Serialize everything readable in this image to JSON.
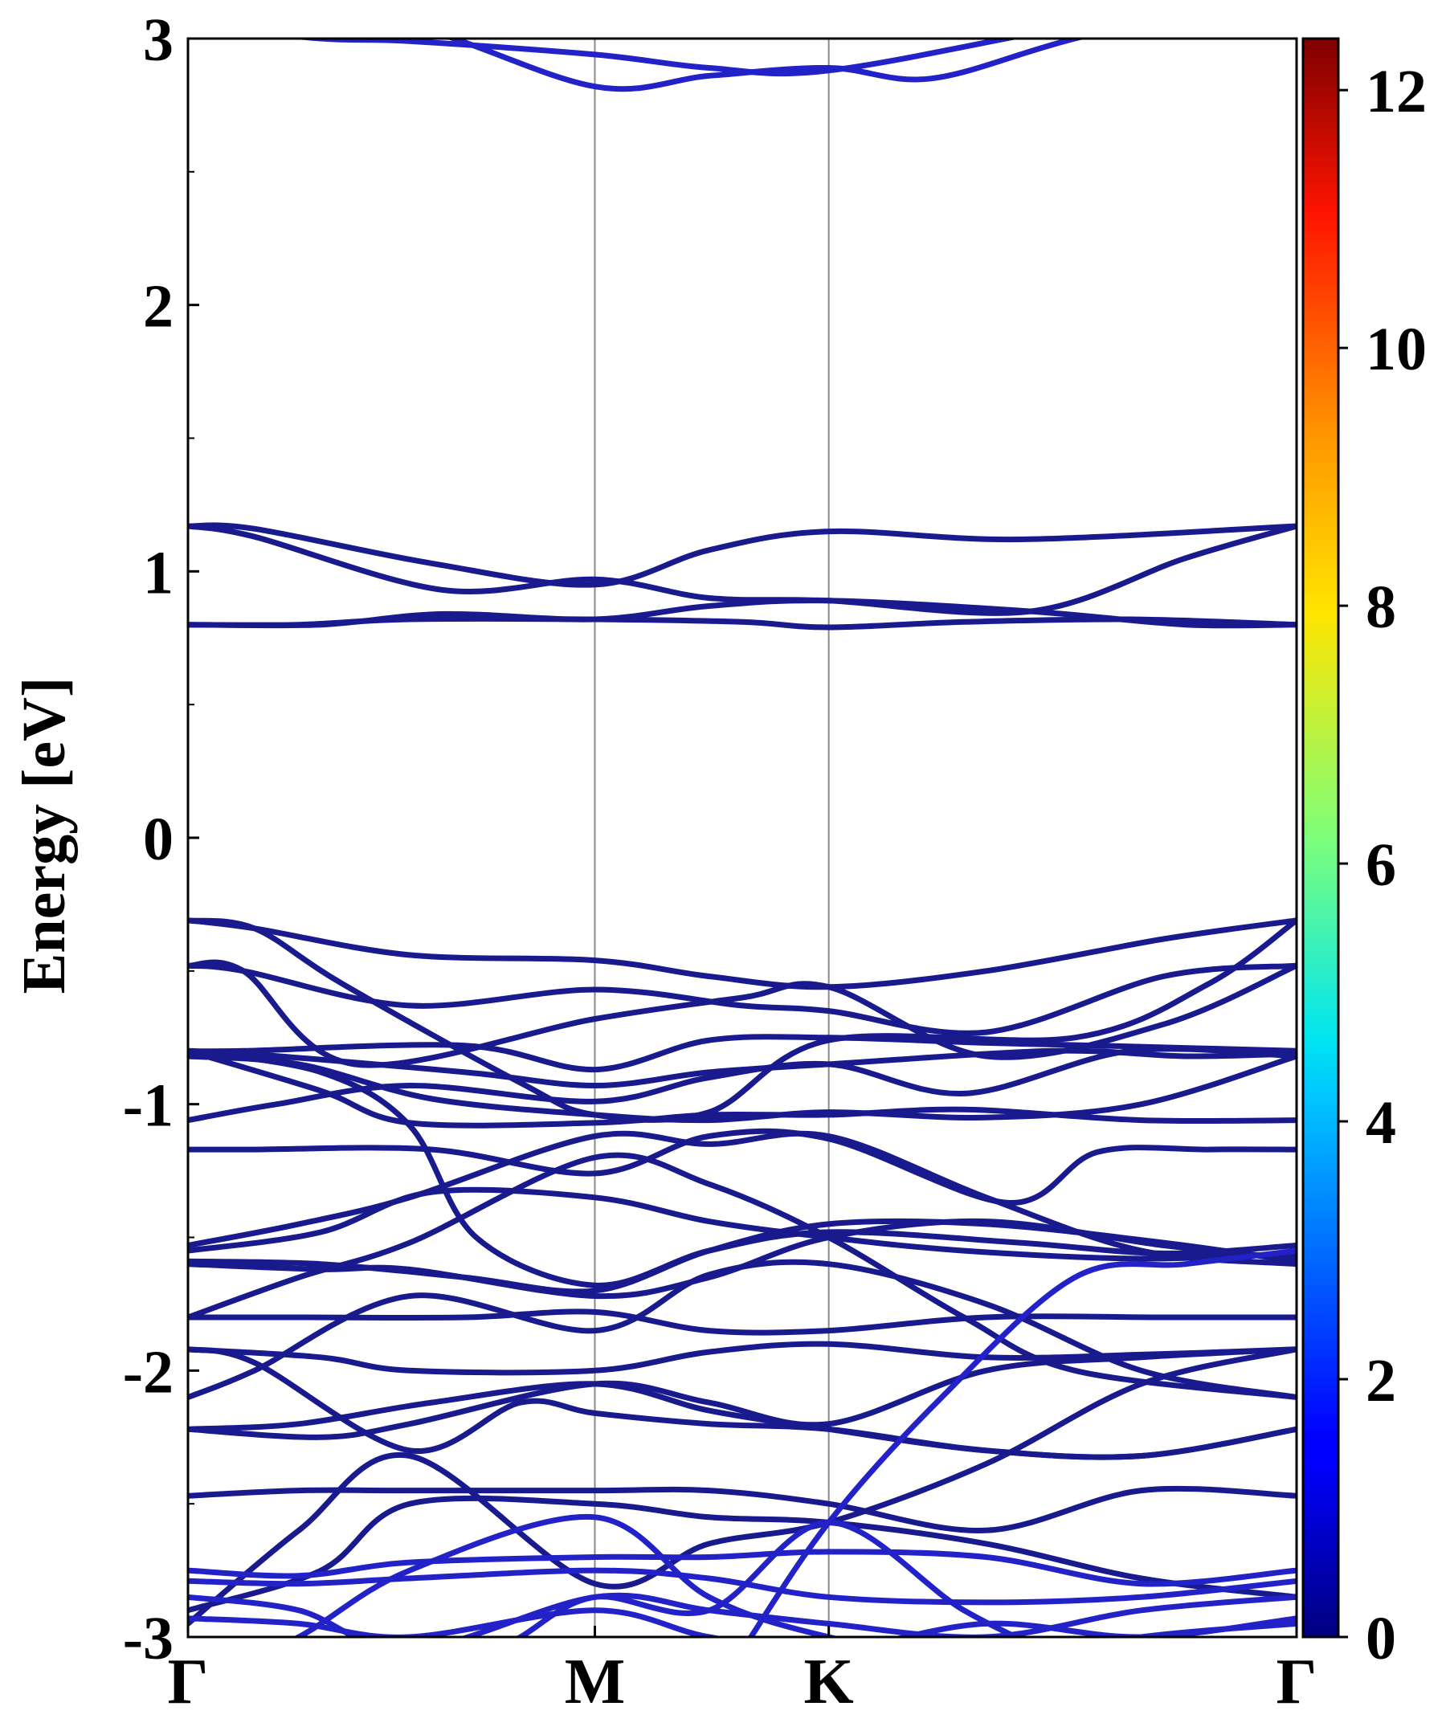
{
  "chart_data": {
    "type": "line",
    "title": "",
    "ylabel": "Energy [eV]",
    "xlabel": "",
    "ylim": [
      -3,
      3
    ],
    "yticks": [
      "3",
      "2",
      "1",
      "0",
      "-1",
      "-2",
      "-3"
    ],
    "yticks_values": [
      3,
      2,
      1,
      0,
      -1,
      -2,
      -3
    ],
    "high_symmetry_points": [
      {
        "label": "Γ",
        "k": 0
      },
      {
        "label": "M",
        "k": 0.367
      },
      {
        "label": "K",
        "k": 0.578
      },
      {
        "label": "Γ",
        "k": 1.0
      }
    ],
    "grid": false,
    "colorbar": {
      "range": [
        0,
        12.4
      ],
      "ticks": [
        "0",
        "2",
        "4",
        "6",
        "8",
        "10",
        "12"
      ],
      "ticks_values": [
        0,
        2,
        4,
        6,
        8,
        10,
        12
      ],
      "colormap": "jet"
    },
    "band_color": "#1a1a8f",
    "band_color_light": "#2222c8",
    "series": [
      {
        "k": [
          0,
          0.12,
          0.2,
          0.367,
          0.47,
          0.578,
          0.8,
          1.0
        ],
        "energy": [
          3.05,
          3.0,
          2.99,
          2.94,
          2.89,
          2.88,
          3.05,
          3.2
        ]
      },
      {
        "k": [
          0,
          0.2,
          0.367,
          0.47,
          0.578,
          0.67,
          0.8,
          1.0
        ],
        "energy": [
          3.2,
          3.05,
          2.82,
          2.86,
          2.89,
          2.85,
          3.0,
          3.2
        ]
      },
      {
        "k": [
          0,
          0.06,
          0.22,
          0.367,
          0.47,
          0.578,
          0.75,
          1.0
        ],
        "energy": [
          1.17,
          1.16,
          1.03,
          0.95,
          1.08,
          1.15,
          1.12,
          1.17
        ]
      },
      {
        "k": [
          0,
          0.06,
          0.23,
          0.367,
          0.47,
          0.578,
          0.76,
          0.9,
          1.0
        ],
        "energy": [
          1.17,
          1.13,
          0.93,
          0.97,
          0.9,
          0.89,
          0.85,
          1.05,
          1.17
        ]
      },
      {
        "k": [
          0,
          0.1,
          0.2,
          0.367,
          0.5,
          0.578,
          0.7,
          0.85,
          1.0
        ],
        "energy": [
          0.8,
          0.8,
          0.82,
          0.82,
          0.81,
          0.79,
          0.81,
          0.82,
          0.8
        ]
      },
      {
        "k": [
          0,
          0.12,
          0.23,
          0.367,
          0.47,
          0.578,
          0.76,
          0.9,
          1.0
        ],
        "energy": [
          0.8,
          0.8,
          0.84,
          0.82,
          0.87,
          0.89,
          0.85,
          0.8,
          0.8
        ]
      },
      {
        "k": [
          0,
          0.06,
          0.2,
          0.367,
          0.47,
          0.578,
          0.72,
          0.88,
          1.0
        ],
        "energy": [
          -0.31,
          -0.34,
          -0.44,
          -0.46,
          -0.52,
          -0.56,
          -0.5,
          -0.38,
          -0.31
        ]
      },
      {
        "k": [
          0,
          0.05,
          0.2,
          0.367,
          0.5,
          0.578,
          0.72,
          0.88,
          1.0
        ],
        "energy": [
          -0.48,
          -0.5,
          -0.63,
          -0.57,
          -0.63,
          -0.65,
          -0.73,
          -0.52,
          -0.48
        ]
      },
      {
        "k": [
          0,
          0.06,
          0.14,
          0.3,
          0.367,
          0.47,
          0.578,
          0.8,
          0.92,
          1.0
        ],
        "energy": [
          -0.31,
          -0.34,
          -0.55,
          -0.92,
          -1.04,
          -1.03,
          -0.76,
          -0.75,
          -0.55,
          -0.31
        ]
      },
      {
        "k": [
          0,
          0.05,
          0.15,
          0.367,
          0.5,
          0.578,
          0.72,
          0.88,
          1.0
        ],
        "energy": [
          -0.48,
          -0.5,
          -0.85,
          -0.68,
          -0.6,
          -0.56,
          -0.82,
          -0.7,
          -0.48
        ]
      },
      {
        "k": [
          0,
          0.05,
          0.25,
          0.367,
          0.47,
          0.578,
          0.72,
          0.82,
          1.0
        ],
        "energy": [
          -0.8,
          -0.8,
          -0.78,
          -0.87,
          -0.76,
          -0.75,
          -0.77,
          -0.78,
          -0.8
        ]
      },
      {
        "k": [
          0,
          0.05,
          0.25,
          0.367,
          0.47,
          0.578,
          0.78,
          0.9,
          1.0
        ],
        "energy": [
          -0.81,
          -0.81,
          -0.88,
          -0.93,
          -0.88,
          -0.85,
          -0.8,
          -0.82,
          -0.81
        ]
      },
      {
        "k": [
          0,
          0.1,
          0.22,
          0.367,
          0.47,
          0.578,
          0.72,
          0.86,
          1.0
        ],
        "energy": [
          -0.82,
          -0.85,
          -0.98,
          -1.04,
          -1.06,
          -1.03,
          -1.05,
          -1.0,
          -0.82
        ]
      },
      {
        "k": [
          0,
          0.08,
          0.2,
          0.367,
          0.47,
          0.578,
          0.7,
          0.85,
          1.0
        ],
        "energy": [
          -1.06,
          -1.0,
          -0.93,
          -0.99,
          -0.9,
          -0.85,
          -0.96,
          -0.8,
          -0.82
        ]
      },
      {
        "k": [
          0,
          0.12,
          0.2,
          0.367,
          0.47,
          0.578,
          0.7,
          0.86,
          1.0
        ],
        "energy": [
          -0.8,
          -0.95,
          -1.07,
          -1.07,
          -1.04,
          -1.04,
          -1.02,
          -1.06,
          -1.06
        ]
      },
      {
        "k": [
          0,
          0.06,
          0.22,
          0.367,
          0.47,
          0.578,
          0.74,
          0.82,
          0.92,
          1.0
        ],
        "energy": [
          -1.17,
          -1.17,
          -1.17,
          -1.26,
          -1.12,
          -1.13,
          -1.37,
          -1.18,
          -1.17,
          -1.17
        ]
      },
      {
        "k": [
          0,
          0.12,
          0.2,
          0.26,
          0.367,
          0.47,
          0.578,
          0.75,
          0.88,
          1.0
        ],
        "energy": [
          -0.8,
          -0.88,
          -1.08,
          -1.5,
          -1.68,
          -1.55,
          -1.48,
          -1.52,
          -1.56,
          -1.53
        ]
      },
      {
        "k": [
          0,
          0.1,
          0.2,
          0.367,
          0.47,
          0.578,
          0.72,
          0.86,
          1.0
        ],
        "energy": [
          -1.53,
          -1.45,
          -1.35,
          -1.12,
          -1.15,
          -1.12,
          -1.35,
          -1.55,
          -1.6
        ]
      },
      {
        "k": [
          0,
          0.12,
          0.22,
          0.367,
          0.47,
          0.578,
          0.7,
          0.86,
          1.0
        ],
        "energy": [
          -1.55,
          -1.48,
          -1.33,
          -1.35,
          -1.44,
          -1.5,
          -1.55,
          -1.58,
          -1.56
        ]
      },
      {
        "k": [
          0,
          0.12,
          0.25,
          0.367,
          0.47,
          0.578,
          0.72,
          0.88,
          1.0
        ],
        "energy": [
          -1.59,
          -1.6,
          -1.65,
          -1.7,
          -1.55,
          -1.45,
          -1.45,
          -1.52,
          -1.59
        ]
      },
      {
        "k": [
          0,
          0.12,
          0.2,
          0.367,
          0.47,
          0.578,
          0.72,
          0.88,
          1.0
        ],
        "energy": [
          -1.6,
          -1.62,
          -1.62,
          -1.72,
          -1.65,
          -1.5,
          -1.44,
          -1.53,
          -1.58
        ]
      },
      {
        "k": [
          0,
          0.1,
          0.2,
          0.367,
          0.47,
          0.578,
          0.7,
          0.8,
          1.0
        ],
        "energy": [
          -1.8,
          -1.65,
          -1.52,
          -1.2,
          -1.3,
          -1.5,
          -1.8,
          -2.0,
          -2.1
        ]
      },
      {
        "k": [
          0,
          0.1,
          0.25,
          0.367,
          0.47,
          0.578,
          0.72,
          0.88,
          1.0
        ],
        "energy": [
          -1.8,
          -1.8,
          -1.8,
          -1.78,
          -1.85,
          -1.85,
          -1.8,
          -1.8,
          -1.8
        ]
      },
      {
        "k": [
          0,
          0.06,
          0.2,
          0.367,
          0.47,
          0.578,
          0.72,
          0.86,
          1.0
        ],
        "energy": [
          -2.1,
          -2.0,
          -1.72,
          -1.85,
          -1.64,
          -1.6,
          -1.75,
          -2.0,
          -2.1
        ]
      },
      {
        "k": [
          0,
          0.12,
          0.2,
          0.367,
          0.47,
          0.578,
          0.72,
          0.86,
          1.0
        ],
        "energy": [
          -1.92,
          -1.95,
          -2.0,
          -2.0,
          -1.93,
          -1.9,
          -1.95,
          -1.94,
          -1.92
        ]
      },
      {
        "k": [
          0,
          0.06,
          0.2,
          0.3,
          0.367,
          0.47,
          0.578,
          0.72,
          0.86,
          1.0
        ],
        "energy": [
          -1.92,
          -1.97,
          -2.3,
          -2.12,
          -2.16,
          -2.2,
          -2.22,
          -2.3,
          -2.32,
          -2.22
        ]
      },
      {
        "k": [
          0,
          0.1,
          0.22,
          0.367,
          0.47,
          0.578,
          0.72,
          0.86,
          1.0
        ],
        "energy": [
          -2.22,
          -2.2,
          -2.12,
          -2.05,
          -2.15,
          -2.22,
          -2.3,
          -2.32,
          -2.22
        ]
      },
      {
        "k": [
          0,
          0.12,
          0.2,
          0.367,
          0.47,
          0.578,
          0.72,
          0.86,
          1.0
        ],
        "energy": [
          -2.22,
          -2.25,
          -2.2,
          -2.05,
          -2.12,
          -2.2,
          -2.0,
          -1.95,
          -1.92
        ]
      },
      {
        "k": [
          0,
          0.1,
          0.2,
          0.367,
          0.47,
          0.578,
          0.72,
          0.86,
          1.0
        ],
        "energy": [
          -2.47,
          -2.45,
          -2.45,
          -2.45,
          -2.45,
          -2.5,
          -2.6,
          -2.45,
          -2.47
        ]
      },
      {
        "k": [
          0,
          0.1,
          0.2,
          0.367,
          0.47,
          0.578,
          0.72,
          0.86,
          1.0
        ],
        "energy": [
          -2.95,
          -2.6,
          -2.32,
          -2.8,
          -2.65,
          -2.57,
          -2.35,
          -2.05,
          -1.92
        ]
      },
      {
        "k": [
          0,
          0.12,
          0.2,
          0.367,
          0.47,
          0.578,
          0.72,
          0.86,
          1.0
        ],
        "energy": [
          -2.9,
          -2.75,
          -2.5,
          -2.5,
          -2.55,
          -2.57,
          -2.65,
          -2.78,
          -2.85
        ]
      },
      {
        "k": [
          0,
          0.1,
          0.2,
          0.367,
          0.47,
          0.578,
          0.72,
          0.86,
          1.0
        ],
        "energy": [
          -2.75,
          -2.77,
          -2.72,
          -2.7,
          -2.7,
          -2.68,
          -2.7,
          -2.8,
          -2.75
        ]
      },
      {
        "k": [
          0,
          0.1,
          0.2,
          0.367,
          0.47,
          0.578,
          0.72,
          0.86,
          1.0
        ],
        "energy": [
          -2.79,
          -2.8,
          -2.78,
          -2.75,
          -2.78,
          -2.85,
          -2.87,
          -2.85,
          -2.79
        ]
      },
      {
        "k": [
          0,
          0.1,
          0.2,
          0.367,
          0.47,
          0.578,
          0.72,
          0.86,
          1.0
        ],
        "energy": [
          -2.85,
          -2.9,
          -3.05,
          -2.85,
          -2.9,
          -2.95,
          -3.0,
          -2.9,
          -2.85
        ]
      },
      {
        "k": [
          0,
          0.1,
          0.2,
          0.367,
          0.47,
          0.578,
          0.72,
          0.86,
          1.0
        ],
        "energy": [
          -2.93,
          -2.95,
          -3.0,
          -2.9,
          -3.0,
          -3.05,
          -2.95,
          -3.0,
          -2.93
        ]
      },
      {
        "k": [
          0,
          0.1,
          0.2,
          0.367,
          0.47,
          0.578,
          0.72,
          0.86,
          1.0
        ],
        "energy": [
          -3.2,
          -3.0,
          -2.75,
          -2.55,
          -2.85,
          -3.0,
          -3.1,
          -3.0,
          -2.95
        ]
      },
      {
        "k": [
          0.26,
          0.3,
          0.367,
          0.47,
          0.578,
          0.7,
          0.8
        ],
        "energy": [
          -3.1,
          -3.0,
          -2.85,
          -2.9,
          -2.57,
          -2.9,
          -3.1
        ]
      },
      {
        "k": [
          0.5,
          0.578,
          0.68,
          0.8,
          0.9,
          1.0
        ],
        "energy": [
          -3.05,
          -2.57,
          -2.1,
          -1.65,
          -1.6,
          -1.55
        ]
      }
    ]
  }
}
